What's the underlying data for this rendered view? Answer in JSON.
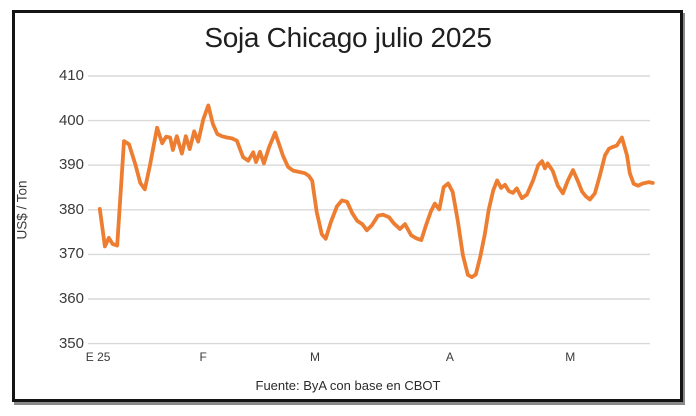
{
  "chart_data": {
    "type": "line",
    "title": "Soja Chicago julio 2025",
    "ylabel": "US$ / Ton",
    "source": "Fuente: ByA con base en CBOT",
    "ylim": [
      350,
      410
    ],
    "y_ticks": [
      410,
      400,
      390,
      380,
      370,
      360,
      350
    ],
    "x_ticks": [
      {
        "label": "E 25",
        "pos": 0.018
      },
      {
        "label": "F",
        "pos": 0.205
      },
      {
        "label": "M",
        "pos": 0.404
      },
      {
        "label": "A",
        "pos": 0.644
      },
      {
        "label": "M",
        "pos": 0.858
      }
    ],
    "grid": true,
    "legend_position": "none",
    "line_color": "#ED7D31",
    "grid_color": "#D9D9D9",
    "series": [
      {
        "name": "Soja Chicago julio 2025 (US$/Ton)",
        "points": [
          [
            0.021,
            380.2
          ],
          [
            0.03,
            371.8
          ],
          [
            0.037,
            373.7
          ],
          [
            0.044,
            372.3
          ],
          [
            0.052,
            372.0
          ],
          [
            0.064,
            395.4
          ],
          [
            0.073,
            394.7
          ],
          [
            0.084,
            390.3
          ],
          [
            0.093,
            386.0
          ],
          [
            0.101,
            384.6
          ],
          [
            0.11,
            389.8
          ],
          [
            0.123,
            398.4
          ],
          [
            0.132,
            394.9
          ],
          [
            0.139,
            396.4
          ],
          [
            0.146,
            396.2
          ],
          [
            0.151,
            393.4
          ],
          [
            0.158,
            396.5
          ],
          [
            0.167,
            392.6
          ],
          [
            0.174,
            396.5
          ],
          [
            0.181,
            393.6
          ],
          [
            0.189,
            397.6
          ],
          [
            0.196,
            395.3
          ],
          [
            0.205,
            400.2
          ],
          [
            0.214,
            403.4
          ],
          [
            0.222,
            399.3
          ],
          [
            0.23,
            397.0
          ],
          [
            0.238,
            396.5
          ],
          [
            0.247,
            396.2
          ],
          [
            0.256,
            396.0
          ],
          [
            0.265,
            395.5
          ],
          [
            0.276,
            391.8
          ],
          [
            0.285,
            391.0
          ],
          [
            0.294,
            392.9
          ],
          [
            0.299,
            390.7
          ],
          [
            0.306,
            393.0
          ],
          [
            0.313,
            390.4
          ],
          [
            0.322,
            394.0
          ],
          [
            0.333,
            397.3
          ],
          [
            0.347,
            392.1
          ],
          [
            0.356,
            389.6
          ],
          [
            0.365,
            388.8
          ],
          [
            0.375,
            388.5
          ],
          [
            0.386,
            388.2
          ],
          [
            0.393,
            387.6
          ],
          [
            0.399,
            386.5
          ],
          [
            0.407,
            379.5
          ],
          [
            0.416,
            374.5
          ],
          [
            0.423,
            373.5
          ],
          [
            0.432,
            377.2
          ],
          [
            0.443,
            380.8
          ],
          [
            0.452,
            382.1
          ],
          [
            0.461,
            381.8
          ],
          [
            0.47,
            379.3
          ],
          [
            0.479,
            377.5
          ],
          [
            0.488,
            376.8
          ],
          [
            0.496,
            375.4
          ],
          [
            0.505,
            376.5
          ],
          [
            0.516,
            378.7
          ],
          [
            0.525,
            378.9
          ],
          [
            0.536,
            378.3
          ],
          [
            0.544,
            377.0
          ],
          [
            0.555,
            375.7
          ],
          [
            0.564,
            376.8
          ],
          [
            0.575,
            374.3
          ],
          [
            0.584,
            373.6
          ],
          [
            0.593,
            373.2
          ],
          [
            0.601,
            376.4
          ],
          [
            0.61,
            379.6
          ],
          [
            0.617,
            381.4
          ],
          [
            0.625,
            380.1
          ],
          [
            0.633,
            385.1
          ],
          [
            0.641,
            385.9
          ],
          [
            0.649,
            384.0
          ],
          [
            0.658,
            377.5
          ],
          [
            0.667,
            369.8
          ],
          [
            0.676,
            365.4
          ],
          [
            0.683,
            364.9
          ],
          [
            0.69,
            365.5
          ],
          [
            0.698,
            369.5
          ],
          [
            0.706,
            374.5
          ],
          [
            0.713,
            380.0
          ],
          [
            0.721,
            384.3
          ],
          [
            0.728,
            386.6
          ],
          [
            0.735,
            384.9
          ],
          [
            0.742,
            385.6
          ],
          [
            0.749,
            384.2
          ],
          [
            0.756,
            383.8
          ],
          [
            0.763,
            384.8
          ],
          [
            0.772,
            382.6
          ],
          [
            0.781,
            383.4
          ],
          [
            0.792,
            386.6
          ],
          [
            0.801,
            390.0
          ],
          [
            0.808,
            390.9
          ],
          [
            0.813,
            389.3
          ],
          [
            0.818,
            390.4
          ],
          [
            0.827,
            388.7
          ],
          [
            0.836,
            385.4
          ],
          [
            0.845,
            383.7
          ],
          [
            0.854,
            386.6
          ],
          [
            0.863,
            388.9
          ],
          [
            0.872,
            386.3
          ],
          [
            0.879,
            384.1
          ],
          [
            0.886,
            383.0
          ],
          [
            0.893,
            382.3
          ],
          [
            0.902,
            383.7
          ],
          [
            0.911,
            387.8
          ],
          [
            0.92,
            392.2
          ],
          [
            0.927,
            393.7
          ],
          [
            0.934,
            394.1
          ],
          [
            0.941,
            394.4
          ],
          [
            0.95,
            396.2
          ],
          [
            0.959,
            392.2
          ],
          [
            0.964,
            388.2
          ],
          [
            0.971,
            385.8
          ],
          [
            0.979,
            385.4
          ],
          [
            0.987,
            385.9
          ],
          [
            0.998,
            386.2
          ],
          [
            1.005,
            386.0
          ]
        ]
      }
    ]
  }
}
